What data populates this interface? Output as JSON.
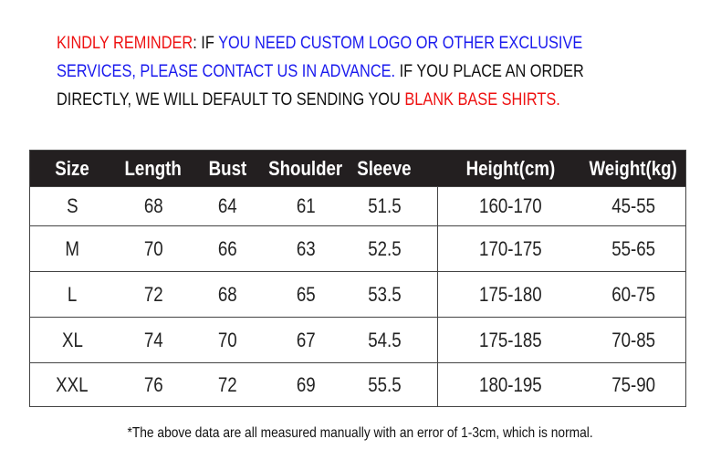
{
  "reminder": {
    "line1": [
      {
        "text": "KINDLY REMINDER",
        "color": "red"
      },
      {
        "text": ": IF ",
        "color": "black"
      },
      {
        "text": "YOU NEED CUSTOM LOGO OR OTHER EXCLUSIVE",
        "color": "blue"
      }
    ],
    "line2": [
      {
        "text": "SERVICES, PLEASE CONTACT US IN ADVANCE.",
        "color": "blue"
      },
      {
        "text": " IF YOU PLACE AN ORDER",
        "color": "black"
      }
    ],
    "line3": [
      {
        "text": "DIRECTLY, WE WILL DEFAULT TO SENDING YOU ",
        "color": "black"
      },
      {
        "text": "BLANK BASE SHIRTS.",
        "color": "red"
      }
    ]
  },
  "colors": {
    "red": "#ee1111",
    "blue": "#1a1aee",
    "header_bg": "#231f20"
  },
  "table": {
    "headers": [
      "Size",
      "Length",
      "Bust",
      "Shoulder",
      "Sleeve",
      "Height(cm)",
      "Weight(kg)"
    ],
    "rows": [
      [
        "S",
        "68",
        "64",
        "61",
        "51.5",
        "160-170",
        "45-55"
      ],
      [
        "M",
        "70",
        "66",
        "63",
        "52.5",
        "170-175",
        "55-65"
      ],
      [
        "L",
        "72",
        "68",
        "65",
        "53.5",
        "175-180",
        "60-75"
      ],
      [
        "XL",
        "74",
        "70",
        "67",
        "54.5",
        "175-185",
        "70-85"
      ],
      [
        "XXL",
        "76",
        "72",
        "69",
        "55.5",
        "180-195",
        "75-90"
      ]
    ]
  },
  "footer": "*The above data are all measured manually with an error of 1-3cm, which is normal."
}
